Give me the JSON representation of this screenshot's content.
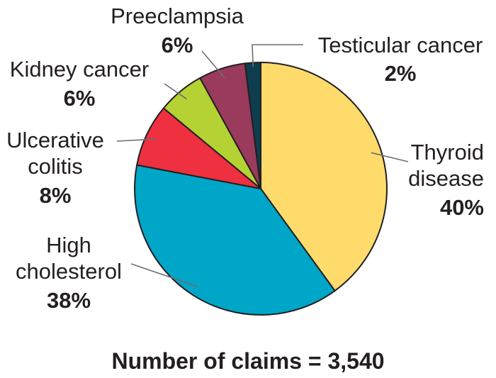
{
  "chart_data": {
    "type": "pie",
    "slices": [
      {
        "label_lines": [
          "Thyroid",
          "disease"
        ],
        "value": 40,
        "pct_label": "40%",
        "color": "#fedb6b"
      },
      {
        "label_lines": [
          "High",
          "cholesterol"
        ],
        "value": 38,
        "pct_label": "38%",
        "color": "#00a6c8"
      },
      {
        "label_lines": [
          "Ulcerative",
          "colitis"
        ],
        "value": 8,
        "pct_label": "8%",
        "color": "#ee3040"
      },
      {
        "label_lines": [
          "Kidney cancer"
        ],
        "value": 6,
        "pct_label": "6%",
        "color": "#b4d234"
      },
      {
        "label_lines": [
          "Preeclampsia"
        ],
        "value": 6,
        "pct_label": "6%",
        "color": "#9a3a5d"
      },
      {
        "label_lines": [
          "Testicular cancer"
        ],
        "value": 2,
        "pct_label": "2%",
        "color": "#0e3d4f"
      }
    ],
    "footnote": "Number of claims = 3,540"
  }
}
